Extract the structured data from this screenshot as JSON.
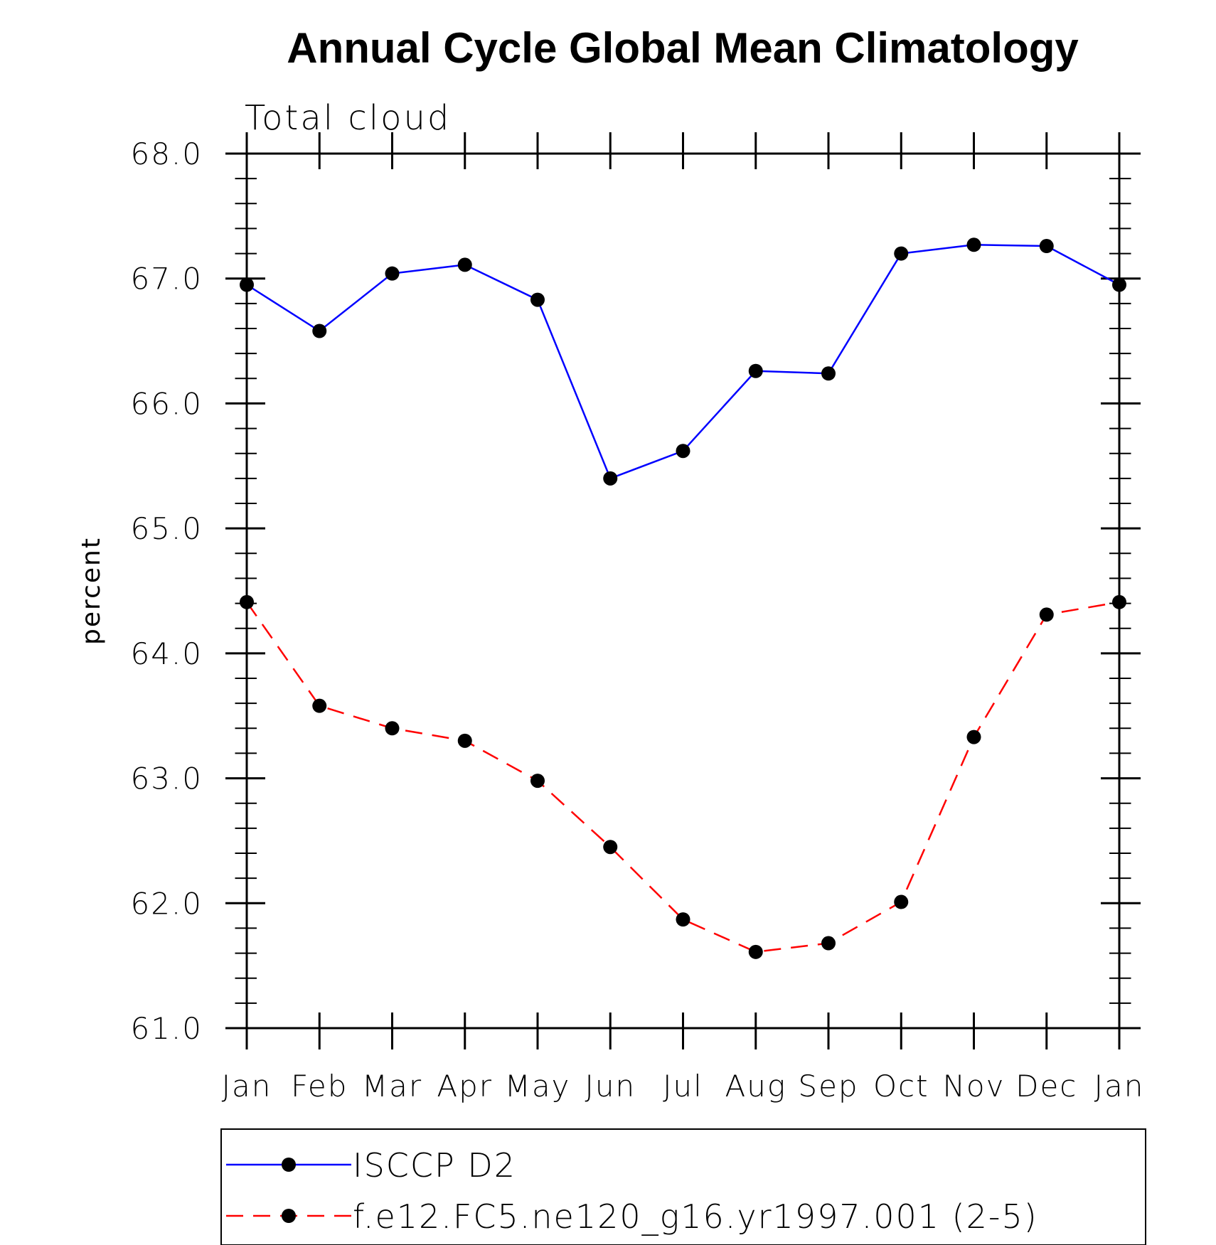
{
  "chart_data": {
    "type": "line",
    "title": "Annual Cycle Global Mean Climatology",
    "subtitle": "Total cloud",
    "xlabel": "",
    "ylabel": "percent",
    "categories": [
      "Jan",
      "Feb",
      "Mar",
      "Apr",
      "May",
      "Jun",
      "Jul",
      "Aug",
      "Sep",
      "Oct",
      "Nov",
      "Dec",
      "Jan"
    ],
    "ylim": [
      61.0,
      68.0
    ],
    "yticks": [
      "61.0",
      "62.0",
      "63.0",
      "64.0",
      "65.0",
      "66.0",
      "67.0",
      "68.0"
    ],
    "grid": false,
    "legend_position": "bottom",
    "series": [
      {
        "name": "ISCCP D2",
        "color": "#0000ff",
        "line_style": "solid",
        "marker": "filled-circle",
        "values": [
          66.95,
          66.58,
          67.04,
          67.11,
          66.83,
          65.4,
          65.62,
          66.26,
          66.24,
          67.2,
          67.27,
          67.26,
          66.95
        ]
      },
      {
        "name": "f.e12.FC5.ne120_g16.yr1997.001 (2-5)",
        "color": "#ff0000",
        "line_style": "dashed",
        "marker": "filled-circle",
        "values": [
          64.41,
          63.58,
          63.4,
          63.3,
          62.98,
          62.45,
          61.87,
          61.61,
          61.68,
          62.01,
          63.33,
          64.31,
          64.41
        ]
      }
    ]
  }
}
